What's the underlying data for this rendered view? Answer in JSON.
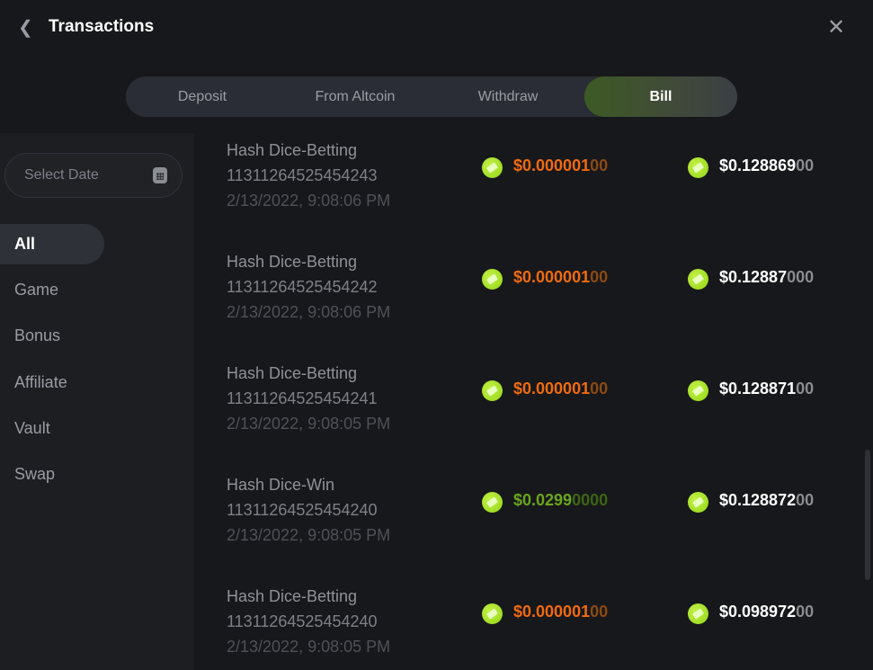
{
  "header": {
    "title": "Transactions",
    "back_icon": "chevron-left-icon",
    "close_icon": "close-icon"
  },
  "tabs": [
    {
      "label": "Deposit"
    },
    {
      "label": "From Altcoin"
    },
    {
      "label": "Withdraw"
    },
    {
      "label": "Bill",
      "active": true
    }
  ],
  "sidebar": {
    "date_placeholder": "Select Date",
    "items": [
      {
        "label": "All",
        "active": true
      },
      {
        "label": "Game"
      },
      {
        "label": "Bonus"
      },
      {
        "label": "Affiliate"
      },
      {
        "label": "Vault"
      },
      {
        "label": "Swap"
      }
    ]
  },
  "colors": {
    "loss": "#f06a0f",
    "win": "#6aa51c",
    "coin": "#9ee01b",
    "bg": "#17181b"
  },
  "rows": [
    {
      "name": "Hash Dice-Betting",
      "id": "11311264525454243",
      "time": "2/13/2022, 9:08:06 PM",
      "amount": "$0.000001",
      "amount_dim": "00",
      "type": "loss",
      "balance": "$0.128869",
      "balance_dim": "00"
    },
    {
      "name": "Hash Dice-Betting",
      "id": "11311264525454242",
      "time": "2/13/2022, 9:08:06 PM",
      "amount": "$0.000001",
      "amount_dim": "00",
      "type": "loss",
      "balance": "$0.12887",
      "balance_dim": "000"
    },
    {
      "name": "Hash Dice-Betting",
      "id": "11311264525454241",
      "time": "2/13/2022, 9:08:05 PM",
      "amount": "$0.000001",
      "amount_dim": "00",
      "type": "loss",
      "balance": "$0.128871",
      "balance_dim": "00"
    },
    {
      "name": "Hash Dice-Win",
      "id": "11311264525454240",
      "time": "2/13/2022, 9:08:05 PM",
      "amount": "$0.0299",
      "amount_dim": "0000",
      "type": "win",
      "balance": "$0.128872",
      "balance_dim": "00"
    },
    {
      "name": "Hash Dice-Betting",
      "id": "11311264525454240",
      "time": "2/13/2022, 9:08:05 PM",
      "amount": "$0.000001",
      "amount_dim": "00",
      "type": "loss",
      "balance": "$0.098972",
      "balance_dim": "00"
    }
  ]
}
